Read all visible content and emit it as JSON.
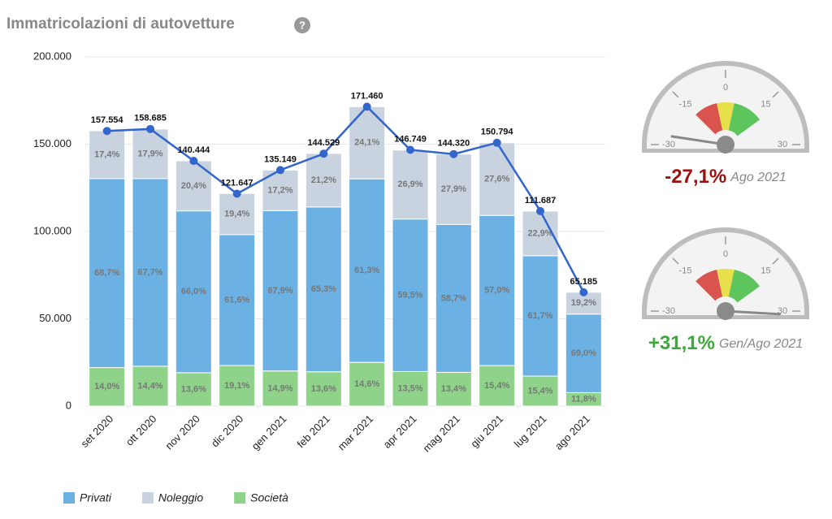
{
  "chart_data": {
    "type": "stacked-bar-line",
    "title": "Immatricolazioni di autovetture",
    "categories": [
      "set 2020",
      "ott 2020",
      "nov 2020",
      "dic 2020",
      "gen 2021",
      "feb 2021",
      "mar 2021",
      "apr 2021",
      "mag 2021",
      "giu 2021",
      "lug 2021",
      "ago 2021"
    ],
    "series": [
      {
        "name": "Società",
        "color": "#8ed389",
        "values": [
          14.0,
          14.4,
          13.6,
          19.1,
          14.9,
          13.6,
          14.6,
          13.5,
          13.4,
          15.4,
          15.4,
          11.8
        ],
        "value_labels": [
          "14,0%",
          "14,4%",
          "13,6%",
          "19,1%",
          "14,9%",
          "13,6%",
          "14,6%",
          "13,5%",
          "13,4%",
          "15,4%",
          "15,4%",
          "11,8%"
        ]
      },
      {
        "name": "Privati",
        "color": "#6cb1e4",
        "values": [
          68.7,
          67.7,
          66.0,
          61.6,
          67.9,
          65.3,
          61.3,
          59.5,
          58.7,
          57.0,
          61.7,
          69.0
        ],
        "value_labels": [
          "68,7%",
          "67,7%",
          "66,0%",
          "61,6%",
          "67,9%",
          "65,3%",
          "61,3%",
          "59,5%",
          "58,7%",
          "57,0%",
          "61,7%",
          "69,0%"
        ]
      },
      {
        "name": "Noleggio",
        "color": "#c9d3e0",
        "values": [
          17.4,
          17.9,
          20.4,
          19.4,
          17.2,
          21.2,
          24.1,
          26.9,
          27.9,
          27.6,
          22.9,
          19.2
        ],
        "value_labels": [
          "17,4%",
          "17,9%",
          "20,4%",
          "19,4%",
          "17,2%",
          "21,2%",
          "24,1%",
          "26,9%",
          "27,9%",
          "27,6%",
          "22,9%",
          "19,2%"
        ]
      }
    ],
    "legend_order": [
      1,
      2,
      0
    ],
    "total": {
      "color": "#3366cc",
      "values": [
        157554,
        158685,
        140444,
        121647,
        135149,
        144529,
        171460,
        146749,
        144320,
        150794,
        111687,
        65185
      ],
      "value_labels": [
        "157.554",
        "158.685",
        "140.444",
        "121.647",
        "135.149",
        "144.529",
        "171.460",
        "146.749",
        "144.320",
        "150.794",
        "111.687",
        "65.185"
      ]
    },
    "ylim": [
      0,
      200000
    ],
    "yticks": [
      0,
      {
        "value": 50000,
        "label": "50.000"
      },
      {
        "value": 100000,
        "label": "100.000"
      },
      {
        "value": 150000,
        "label": "150.000"
      },
      {
        "value": 200000,
        "label": "200.000"
      }
    ],
    "grid": true
  },
  "gauges": [
    {
      "value": -27.1,
      "label": "-27,1%",
      "period": "Ago 2021",
      "color": "#a01010",
      "min": -30,
      "max": 30,
      "ticks": [
        -30,
        -15,
        0,
        15,
        30
      ],
      "bands": [
        {
          "from": -15,
          "to": -4,
          "color": "#d9534f"
        },
        {
          "from": -4,
          "to": 4,
          "color": "#e8e04a"
        },
        {
          "from": 4,
          "to": 18,
          "color": "#5cc55c"
        }
      ]
    },
    {
      "value": 31.1,
      "label": "+31,1%",
      "period": "Gen/Ago 2021",
      "color": "#3aa83a",
      "min": -30,
      "max": 30,
      "ticks": [
        -30,
        -15,
        0,
        15,
        30
      ],
      "bands": [
        {
          "from": -15,
          "to": -4,
          "color": "#d9534f"
        },
        {
          "from": -4,
          "to": 4,
          "color": "#e8e04a"
        },
        {
          "from": 4,
          "to": 18,
          "color": "#5cc55c"
        }
      ]
    }
  ]
}
